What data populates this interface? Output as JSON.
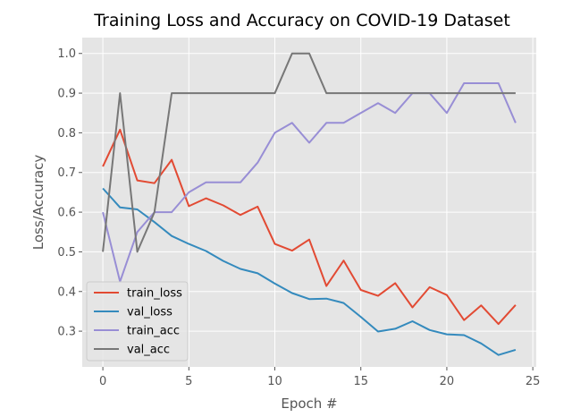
{
  "chart_data": {
    "type": "line",
    "title": "Training Loss and Accuracy on COVID-19 Dataset",
    "xlabel": "Epoch #",
    "ylabel": "Loss/Accuracy",
    "xlim": [
      -1.2,
      25.2
    ],
    "ylim": [
      0.21,
      1.04
    ],
    "xticks": [
      0,
      5,
      10,
      15,
      20,
      25
    ],
    "yticks": [
      0.3,
      0.4,
      0.5,
      0.6,
      0.7,
      0.8,
      0.9,
      1.0
    ],
    "grid": true,
    "legend_position": "lower-left",
    "x": [
      0,
      1,
      2,
      3,
      4,
      5,
      6,
      7,
      8,
      9,
      10,
      11,
      12,
      13,
      14,
      15,
      16,
      17,
      18,
      19,
      20,
      21,
      22,
      23,
      24
    ],
    "series": [
      {
        "name": "train_loss",
        "color": "#E24A33",
        "values": [
          0.715,
          0.808,
          0.68,
          0.673,
          0.732,
          0.615,
          0.635,
          0.617,
          0.593,
          0.614,
          0.52,
          0.503,
          0.531,
          0.414,
          0.478,
          0.404,
          0.389,
          0.421,
          0.36,
          0.411,
          0.391,
          0.328,
          0.365,
          0.318,
          0.366
        ]
      },
      {
        "name": "val_loss",
        "color": "#348ABD",
        "values": [
          0.66,
          0.612,
          0.607,
          0.575,
          0.54,
          0.52,
          0.502,
          0.477,
          0.457,
          0.446,
          0.42,
          0.396,
          0.381,
          0.382,
          0.371,
          0.336,
          0.299,
          0.306,
          0.325,
          0.303,
          0.292,
          0.29,
          0.269,
          0.24,
          0.253
        ]
      },
      {
        "name": "train_acc",
        "color": "#988ED5",
        "values": [
          0.6,
          0.425,
          0.55,
          0.6,
          0.6,
          0.65,
          0.675,
          0.675,
          0.675,
          0.725,
          0.8,
          0.825,
          0.775,
          0.825,
          0.825,
          0.85,
          0.875,
          0.85,
          0.9,
          0.9,
          0.85,
          0.925,
          0.925,
          0.925,
          0.825
        ]
      },
      {
        "name": "val_acc",
        "color": "#777777",
        "values": [
          0.5,
          0.9,
          0.5,
          0.6,
          0.9,
          0.9,
          0.9,
          0.9,
          0.9,
          0.9,
          0.9,
          1.0,
          1.0,
          0.9,
          0.9,
          0.9,
          0.9,
          0.9,
          0.9,
          0.9,
          0.9,
          0.9,
          0.9,
          0.9,
          0.9
        ]
      }
    ]
  }
}
